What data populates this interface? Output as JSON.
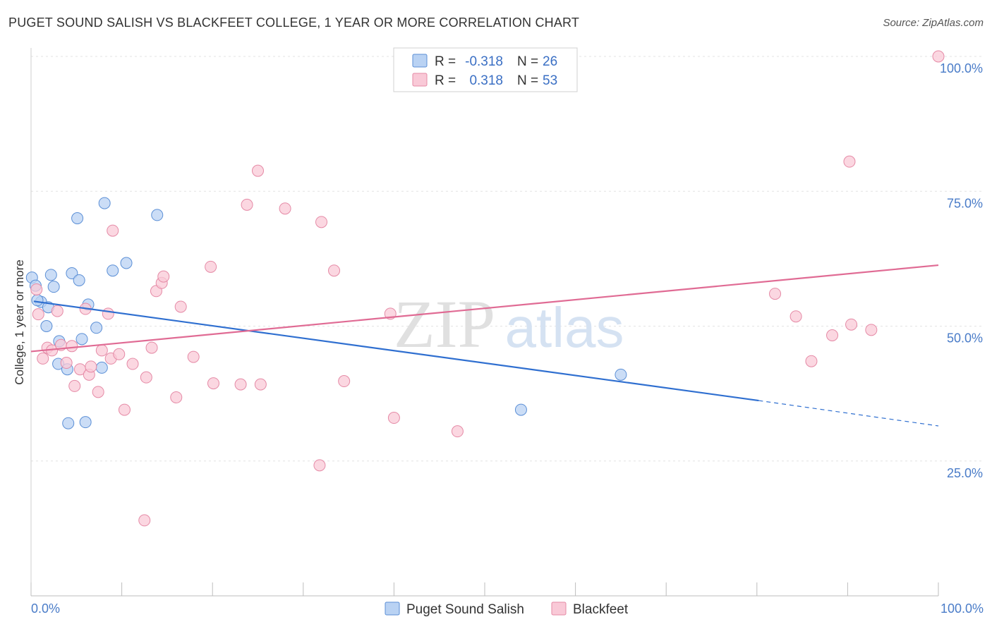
{
  "header": {
    "title": "PUGET SOUND SALISH VS BLACKFEET COLLEGE, 1 YEAR OR MORE CORRELATION CHART",
    "source": "Source: ZipAtlas.com"
  },
  "watermark": {
    "zip": "ZIP",
    "atlas": "atlas"
  },
  "legend": {
    "r_label": "R =",
    "n_label": "N =",
    "rows": [
      {
        "r": "-0.318",
        "n": "26",
        "color": "#a9c8f0"
      },
      {
        "r": "0.318",
        "n": "53",
        "color": "#f7b8cb"
      }
    ]
  },
  "chart_data": {
    "type": "scatter",
    "title": "PUGET SOUND SALISH VS BLACKFEET COLLEGE, 1 YEAR OR MORE CORRELATION CHART",
    "xlabel": "",
    "ylabel": "College, 1 year or more",
    "xlim": [
      0,
      100
    ],
    "ylim": [
      0,
      100
    ],
    "x_tick_labels": [
      "0.0%",
      "100.0%"
    ],
    "y_ticks": [
      25,
      50,
      75,
      100
    ],
    "y_tick_labels": [
      "25.0%",
      "50.0%",
      "75.0%",
      "100.0%"
    ],
    "grid": true,
    "series": [
      {
        "name": "Puget Sound Salish",
        "color": "#5b8fd6",
        "fill": "#b9d2f3",
        "line_color": "#2f6fd0",
        "trend": {
          "x0": 0.3,
          "y0": 54.6,
          "x1": 80.2,
          "y1": 36.2,
          "dash_to_x": 100,
          "dash_to_y": 31.5
        },
        "points": [
          [
            0.1,
            59.0
          ],
          [
            0.5,
            57.5
          ],
          [
            1.1,
            54.5
          ],
          [
            1.9,
            53.5
          ],
          [
            2.2,
            59.5
          ],
          [
            2.5,
            57.3
          ],
          [
            1.7,
            50.0
          ],
          [
            3.1,
            47.2
          ],
          [
            3.0,
            43.0
          ],
          [
            4.5,
            59.8
          ],
          [
            5.3,
            58.5
          ],
          [
            5.6,
            47.6
          ],
          [
            4.0,
            42.0
          ],
          [
            5.1,
            70.0
          ],
          [
            6.3,
            54.0
          ],
          [
            7.2,
            49.7
          ],
          [
            7.8,
            42.3
          ],
          [
            8.1,
            72.8
          ],
          [
            9.0,
            60.3
          ],
          [
            10.5,
            61.7
          ],
          [
            13.9,
            70.6
          ],
          [
            4.1,
            32.0
          ],
          [
            6.0,
            32.2
          ],
          [
            54.0,
            34.5
          ],
          [
            65.0,
            41.0
          ],
          [
            0.7,
            54.8
          ]
        ]
      },
      {
        "name": "Blackfeet",
        "color": "#e58aa6",
        "fill": "#f9c9d7",
        "line_color": "#e06b94",
        "trend": {
          "x0": 0.0,
          "y0": 45.3,
          "x1": 100.0,
          "y1": 61.3
        },
        "points": [
          [
            0.6,
            56.8
          ],
          [
            0.8,
            52.2
          ],
          [
            1.3,
            44.0
          ],
          [
            1.8,
            46.0
          ],
          [
            2.3,
            45.5
          ],
          [
            3.3,
            46.5
          ],
          [
            2.9,
            52.8
          ],
          [
            3.9,
            43.2
          ],
          [
            4.8,
            38.9
          ],
          [
            4.5,
            46.3
          ],
          [
            5.4,
            42.0
          ],
          [
            6.0,
            53.2
          ],
          [
            6.4,
            41.0
          ],
          [
            6.6,
            42.5
          ],
          [
            7.4,
            37.8
          ],
          [
            7.8,
            45.5
          ],
          [
            8.5,
            52.3
          ],
          [
            8.8,
            44.0
          ],
          [
            9.7,
            44.8
          ],
          [
            9.0,
            67.7
          ],
          [
            10.3,
            34.5
          ],
          [
            11.2,
            43.0
          ],
          [
            12.7,
            40.5
          ],
          [
            13.3,
            46.0
          ],
          [
            13.8,
            56.5
          ],
          [
            14.4,
            58.0
          ],
          [
            14.6,
            59.2
          ],
          [
            16.0,
            36.8
          ],
          [
            16.5,
            53.6
          ],
          [
            17.9,
            44.3
          ],
          [
            19.8,
            61.0
          ],
          [
            20.1,
            39.4
          ],
          [
            23.1,
            39.2
          ],
          [
            23.8,
            72.5
          ],
          [
            25.0,
            78.8
          ],
          [
            25.3,
            39.2
          ],
          [
            28.0,
            71.8
          ],
          [
            32.0,
            69.3
          ],
          [
            31.8,
            24.2
          ],
          [
            33.4,
            60.3
          ],
          [
            34.5,
            39.8
          ],
          [
            39.6,
            52.3
          ],
          [
            40.0,
            33.0
          ],
          [
            47.0,
            30.5
          ],
          [
            12.5,
            14.0
          ],
          [
            82.0,
            56.0
          ],
          [
            84.3,
            51.8
          ],
          [
            86.0,
            43.5
          ],
          [
            88.3,
            48.3
          ],
          [
            90.4,
            50.3
          ],
          [
            90.2,
            80.5
          ],
          [
            92.6,
            49.3
          ],
          [
            100.0,
            100.0
          ]
        ]
      }
    ]
  },
  "bottom_legend": {
    "items": [
      {
        "label": "Puget Sound Salish"
      },
      {
        "label": "Blackfeet"
      }
    ]
  }
}
